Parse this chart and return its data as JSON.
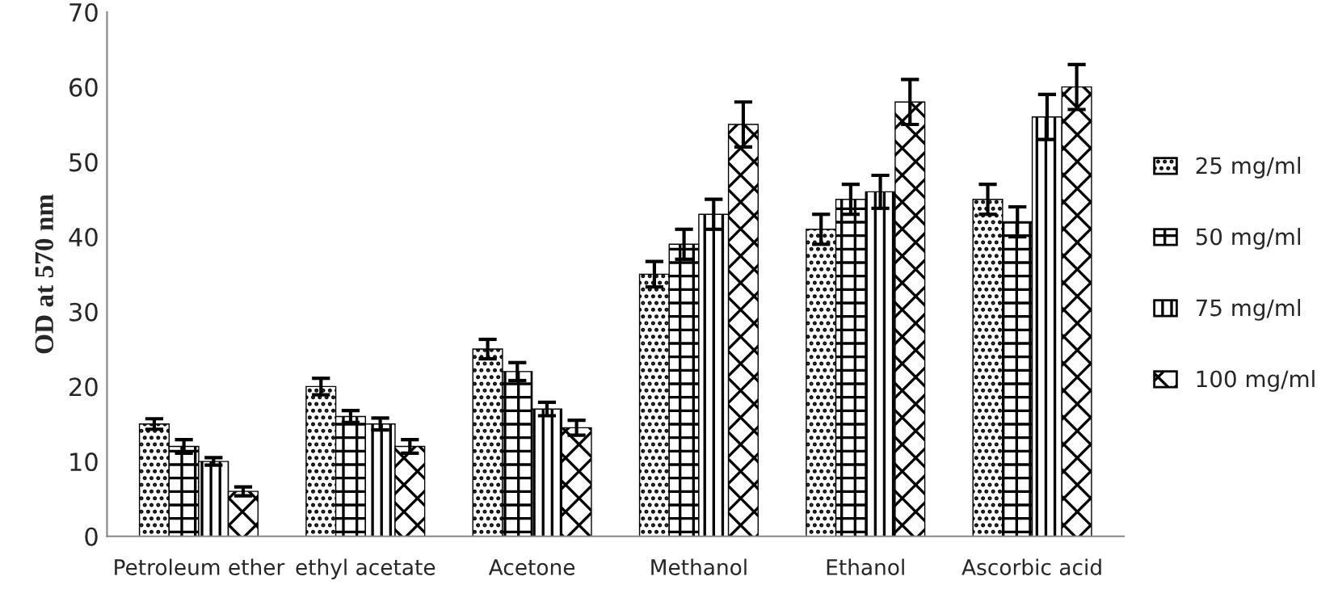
{
  "chart_data": {
    "type": "bar",
    "ylabel": "OD at 570 nm",
    "categories": [
      "Petroleum ether",
      "ethyl acetate",
      "Acetone",
      "Methanol",
      "Ethanol",
      "Ascorbic acid"
    ],
    "series": [
      {
        "name": "25 mg/ml",
        "color": "#000000",
        "values": [
          15,
          20,
          25,
          35,
          41,
          45
        ],
        "errors": [
          0.7,
          1.1,
          1.3,
          1.7,
          2,
          2
        ]
      },
      {
        "name": "50 mg/ml",
        "color": "#000000",
        "values": [
          12,
          16,
          22,
          39,
          45,
          42
        ],
        "errors": [
          0.9,
          0.8,
          1.2,
          2,
          2,
          2
        ]
      },
      {
        "name": "75 mg/ml",
        "color": "#000000",
        "values": [
          10,
          15,
          17,
          43,
          46,
          56
        ],
        "errors": [
          0.5,
          0.8,
          0.9,
          2,
          2.2,
          3
        ]
      },
      {
        "name": "100 mg/ml",
        "color": "#000000",
        "values": [
          6,
          12,
          14.5,
          55,
          58,
          60
        ],
        "errors": [
          0.6,
          0.9,
          1,
          3,
          3,
          3
        ]
      }
    ],
    "ylim": [
      0,
      70
    ],
    "yticks": [
      0,
      10,
      20,
      30,
      40,
      50,
      60,
      70
    ],
    "grid": false,
    "legend": "right"
  }
}
